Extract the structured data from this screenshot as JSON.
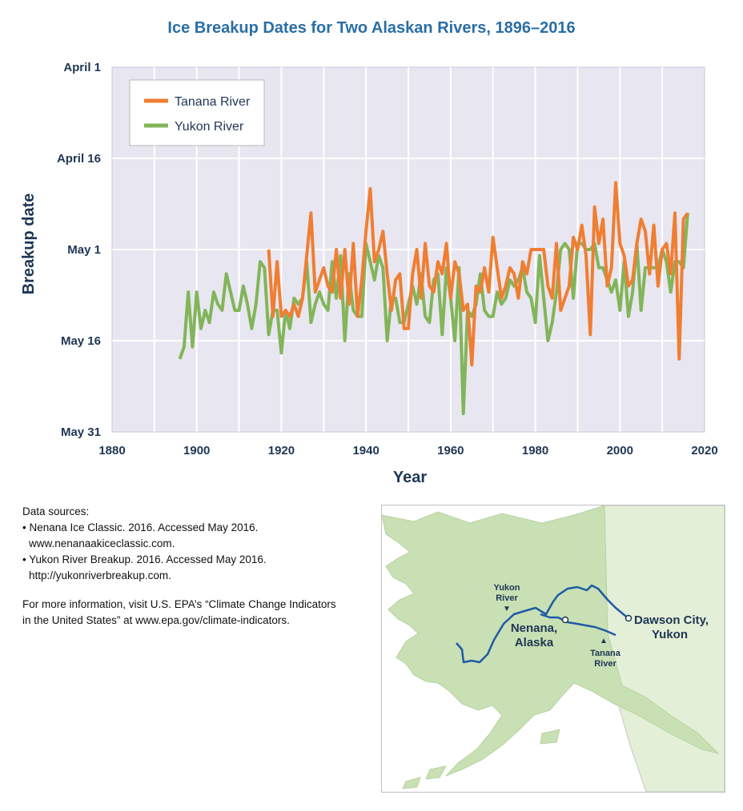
{
  "chart_data": {
    "type": "line",
    "title": "Ice Breakup Dates for Two Alaskan Rivers, 1896–2016",
    "xlabel": "Year",
    "ylabel": "Breakup date",
    "xlim": [
      1880,
      2020
    ],
    "xticks": [
      1880,
      1900,
      1920,
      1940,
      1960,
      1980,
      2000,
      2020
    ],
    "yticks": [
      "April 1",
      "April 16",
      "May 1",
      "May 16",
      "May 31"
    ],
    "y_reversed": true,
    "grid": true,
    "legend_position": "top-left",
    "series": [
      {
        "name": "Tanana River",
        "color": "#f07e32",
        "points": [
          [
            1917,
            "May 1"
          ],
          [
            1918,
            "May 12"
          ],
          [
            1919,
            "May 3"
          ],
          [
            1920,
            "May 12"
          ],
          [
            1921,
            "May 11"
          ],
          [
            1922,
            "May 12"
          ],
          [
            1923,
            "May 10"
          ],
          [
            1924,
            "May 12"
          ],
          [
            1925,
            "May 9"
          ],
          [
            1926,
            "May 2"
          ],
          [
            1927,
            "April 25"
          ],
          [
            1928,
            "May 8"
          ],
          [
            1929,
            "May 6"
          ],
          [
            1930,
            "May 4"
          ],
          [
            1931,
            "May 7"
          ],
          [
            1932,
            "May 8"
          ],
          [
            1933,
            "May 1"
          ],
          [
            1934,
            "May 9"
          ],
          [
            1935,
            "May 1"
          ],
          [
            1936,
            "May 10"
          ],
          [
            1937,
            "April 30"
          ],
          [
            1938,
            "May 12"
          ],
          [
            1939,
            "May 6"
          ],
          [
            1940,
            "April 28"
          ],
          [
            1941,
            "April 21"
          ],
          [
            1942,
            "May 3"
          ],
          [
            1943,
            "May 1"
          ],
          [
            1944,
            "April 28"
          ],
          [
            1945,
            "May 5"
          ],
          [
            1946,
            "May 11"
          ],
          [
            1947,
            "May 6"
          ],
          [
            1948,
            "May 5"
          ],
          [
            1949,
            "May 14"
          ],
          [
            1950,
            "May 14"
          ],
          [
            1951,
            "May 5"
          ],
          [
            1952,
            "May 1"
          ],
          [
            1953,
            "May 9"
          ],
          [
            1954,
            "April 30"
          ],
          [
            1955,
            "May 7"
          ],
          [
            1956,
            "May 8"
          ],
          [
            1957,
            "May 3"
          ],
          [
            1958,
            "May 5"
          ],
          [
            1959,
            "April 30"
          ],
          [
            1960,
            "May 9"
          ],
          [
            1961,
            "May 3"
          ],
          [
            1962,
            "May 5"
          ],
          [
            1963,
            "May 11"
          ],
          [
            1964,
            "May 10"
          ],
          [
            1965,
            "May 20"
          ],
          [
            1966,
            "May 7"
          ],
          [
            1967,
            "May 8"
          ],
          [
            1968,
            "May 4"
          ],
          [
            1969,
            "May 8"
          ],
          [
            1970,
            "April 29"
          ],
          [
            1971,
            "May 4"
          ],
          [
            1972,
            "May 9"
          ],
          [
            1973,
            "May 7"
          ],
          [
            1974,
            "May 4"
          ],
          [
            1975,
            "May 5"
          ],
          [
            1976,
            "May 9"
          ],
          [
            1977,
            "May 3"
          ],
          [
            1978,
            "May 5"
          ],
          [
            1979,
            "May 1"
          ],
          [
            1980,
            "May 1"
          ],
          [
            1981,
            "May 1"
          ],
          [
            1982,
            "May 1"
          ],
          [
            1983,
            "May 7"
          ],
          [
            1984,
            "May 9"
          ],
          [
            1985,
            "April 30"
          ],
          [
            1986,
            "May 11"
          ],
          [
            1987,
            "May 9"
          ],
          [
            1988,
            "May 7"
          ],
          [
            1989,
            "April 29"
          ],
          [
            1990,
            "May 1"
          ],
          [
            1991,
            "April 27"
          ],
          [
            1992,
            "May 2"
          ],
          [
            1993,
            "May 15"
          ],
          [
            1994,
            "April 24"
          ],
          [
            1995,
            "April 30"
          ],
          [
            1996,
            "April 26"
          ],
          [
            1997,
            "May 7"
          ],
          [
            1998,
            "May 4"
          ],
          [
            1999,
            "April 20"
          ],
          [
            2000,
            "April 30"
          ],
          [
            2001,
            "May 2"
          ],
          [
            2002,
            "May 7"
          ],
          [
            2003,
            "May 6"
          ],
          [
            2004,
            "April 30"
          ],
          [
            2005,
            "April 26"
          ],
          [
            2006,
            "April 28"
          ],
          [
            2007,
            "May 5"
          ],
          [
            2008,
            "April 27"
          ],
          [
            2009,
            "May 7"
          ],
          [
            2010,
            "May 1"
          ],
          [
            2011,
            "April 30"
          ],
          [
            2012,
            "May 5"
          ],
          [
            2013,
            "April 25"
          ],
          [
            2014,
            "May 19"
          ],
          [
            2015,
            "April 26"
          ],
          [
            2016,
            "April 25"
          ]
        ]
      },
      {
        "name": "Yukon River",
        "color": "#82b559",
        "points": [
          [
            1896,
            "May 19"
          ],
          [
            1897,
            "May 17"
          ],
          [
            1898,
            "May 8"
          ],
          [
            1899,
            "May 17"
          ],
          [
            1900,
            "May 8"
          ],
          [
            1901,
            "May 14"
          ],
          [
            1902,
            "May 11"
          ],
          [
            1903,
            "May 13"
          ],
          [
            1904,
            "May 8"
          ],
          [
            1905,
            "May 10"
          ],
          [
            1906,
            "May 11"
          ],
          [
            1907,
            "May 5"
          ],
          [
            1908,
            "May 8"
          ],
          [
            1909,
            "May 11"
          ],
          [
            1910,
            "May 11"
          ],
          [
            1911,
            "May 7"
          ],
          [
            1912,
            "May 10"
          ],
          [
            1913,
            "May 14"
          ],
          [
            1914,
            "May 10"
          ],
          [
            1915,
            "May 3"
          ],
          [
            1916,
            "May 4"
          ],
          [
            1917,
            "May 15"
          ],
          [
            1918,
            "May 11"
          ],
          [
            1919,
            "May 11"
          ],
          [
            1920,
            "May 18"
          ],
          [
            1921,
            "May 11"
          ],
          [
            1922,
            "May 14"
          ],
          [
            1923,
            "May 9"
          ],
          [
            1924,
            "May 10"
          ],
          [
            1925,
            "May 9"
          ],
          [
            1926,
            "May 3"
          ],
          [
            1927,
            "May 13"
          ],
          [
            1928,
            "May 10"
          ],
          [
            1929,
            "May 8"
          ],
          [
            1930,
            "May 10"
          ],
          [
            1931,
            "May 11"
          ],
          [
            1932,
            "May 3"
          ],
          [
            1933,
            "May 9"
          ],
          [
            1934,
            "May 2"
          ],
          [
            1935,
            "May 16"
          ],
          [
            1936,
            "May 5"
          ],
          [
            1937,
            "May 11"
          ],
          [
            1938,
            "May 12"
          ],
          [
            1939,
            "May 12"
          ],
          [
            1940,
            "April 30"
          ],
          [
            1941,
            "May 3"
          ],
          [
            1942,
            "May 6"
          ],
          [
            1943,
            "May 2"
          ],
          [
            1944,
            "May 4"
          ],
          [
            1945,
            "May 16"
          ],
          [
            1946,
            "May 9"
          ],
          [
            1947,
            "May 9"
          ],
          [
            1948,
            "May 13"
          ],
          [
            1949,
            "May 13"
          ],
          [
            1950,
            "May 10"
          ],
          [
            1951,
            "May 7"
          ],
          [
            1952,
            "May 10"
          ],
          [
            1953,
            "May 5"
          ],
          [
            1954,
            "May 12"
          ],
          [
            1955,
            "May 13"
          ],
          [
            1956,
            "May 6"
          ],
          [
            1957,
            "May 5"
          ],
          [
            1958,
            "May 15"
          ],
          [
            1959,
            "May 4"
          ],
          [
            1960,
            "May 9"
          ],
          [
            1961,
            "May 16"
          ],
          [
            1962,
            "May 4"
          ],
          [
            1963,
            "May 28"
          ],
          [
            1964,
            "May 11"
          ],
          [
            1965,
            "May 12"
          ],
          [
            1966,
            "May 10"
          ],
          [
            1967,
            "May 5"
          ],
          [
            1968,
            "May 11"
          ],
          [
            1969,
            "May 12"
          ],
          [
            1970,
            "May 12"
          ],
          [
            1971,
            "May 8"
          ],
          [
            1972,
            "May 10"
          ],
          [
            1973,
            "May 9"
          ],
          [
            1974,
            "May 6"
          ],
          [
            1975,
            "May 7"
          ],
          [
            1976,
            "May 6"
          ],
          [
            1977,
            "May 4"
          ],
          [
            1978,
            "May 8"
          ],
          [
            1979,
            "May 9"
          ],
          [
            1980,
            "May 13"
          ],
          [
            1981,
            "May 2"
          ],
          [
            1982,
            "May 9"
          ],
          [
            1983,
            "May 16"
          ],
          [
            1984,
            "May 13"
          ],
          [
            1985,
            "May 8"
          ],
          [
            1986,
            "May 1"
          ],
          [
            1987,
            "April 30"
          ],
          [
            1988,
            "May 1"
          ],
          [
            1989,
            "May 9"
          ],
          [
            1990,
            "April 30"
          ],
          [
            1991,
            "April 30"
          ],
          [
            1992,
            "May 1"
          ],
          [
            1993,
            "May 1"
          ],
          [
            1994,
            "April 30"
          ],
          [
            1995,
            "May 4"
          ],
          [
            1996,
            "May 4"
          ],
          [
            1997,
            "May 6"
          ],
          [
            1998,
            "May 8"
          ],
          [
            1999,
            "May 6"
          ],
          [
            2000,
            "May 11"
          ],
          [
            2001,
            "May 3"
          ],
          [
            2002,
            "May 12"
          ],
          [
            2003,
            "May 8"
          ],
          [
            2004,
            "April 30"
          ],
          [
            2005,
            "May 11"
          ],
          [
            2006,
            "May 4"
          ],
          [
            2007,
            "May 4"
          ],
          [
            2008,
            "May 4"
          ],
          [
            2009,
            "May 4"
          ],
          [
            2010,
            "May 1"
          ],
          [
            2011,
            "May 3"
          ],
          [
            2012,
            "May 8"
          ],
          [
            2013,
            "May 3"
          ],
          [
            2014,
            "May 3"
          ],
          [
            2015,
            "May 4"
          ],
          [
            2016,
            "April 25"
          ]
        ]
      }
    ]
  },
  "sources": {
    "heading": "Data sources:",
    "items": [
      "• Nenana Ice Classic. 2016. Accessed May 2016.",
      "   www.nenanaakiceclassic.com.",
      "• Yukon River Breakup. 2016. Accessed May 2016.",
      "   http://yukonriverbreakup.com."
    ],
    "more_info_line1": "For more information, visit U.S. EPA’s “Climate Change Indicators",
    "more_info_line2": "in the United States” at www.epa.gov/climate-indicators."
  },
  "map": {
    "labels": {
      "yukon_river_1": "Yukon",
      "yukon_river_2": "River",
      "nenana_1": "Nenana,",
      "nenana_2": "Alaska",
      "dawson_1": "Dawson City,",
      "dawson_2": "Yukon",
      "tanana_1": "Tanana",
      "tanana_2": "River"
    },
    "colors": {
      "land": "#c8e0b4",
      "canada": "#e3efd6",
      "river": "#1f5aa6",
      "water": "#ffffff"
    }
  }
}
